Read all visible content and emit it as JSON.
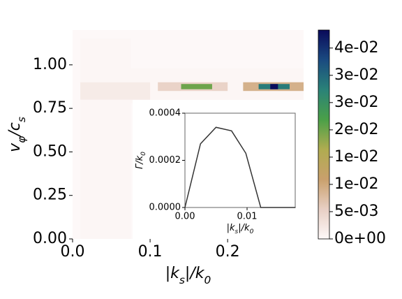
{
  "chart_data": {
    "type": "heatmap",
    "x_label": "|k_s|/k_0",
    "y_label": "v_φ/c_s",
    "xlim": [
      0,
      0.298
    ],
    "ylim": [
      0,
      1.2
    ],
    "xticks": [
      {
        "value": 0,
        "label": "0.0"
      },
      {
        "value": 0.1,
        "label": "0.1"
      },
      {
        "value": 0.2,
        "label": "0.2"
      }
    ],
    "yticks": [
      {
        "value": 0,
        "label": "0.00"
      },
      {
        "value": 0.25,
        "label": "0.25"
      },
      {
        "value": 0.5,
        "label": "0.50"
      },
      {
        "value": 0.75,
        "label": "0.75"
      },
      {
        "value": 1.0,
        "label": "1.00"
      }
    ],
    "cells": [
      {
        "x0": 0.01,
        "x1": 0.075,
        "y0": 0,
        "y1": 1.15,
        "value": 0.0003
      },
      {
        "x0": 0.075,
        "x1": 0.298,
        "y0": 0.78,
        "y1": 0.98,
        "value": 0.0003
      },
      {
        "x0": 0.01,
        "x1": 0.1,
        "y0": 0.8,
        "y1": 0.9,
        "value": 0.0018
      },
      {
        "x0": 0.11,
        "x1": 0.2,
        "y0": 0.85,
        "y1": 0.9,
        "value": 0.005
      },
      {
        "x0": 0.14,
        "x1": 0.18,
        "y0": 0.86,
        "y1": 0.89,
        "value": 0.02
      },
      {
        "x0": 0.22,
        "x1": 0.298,
        "y0": 0.85,
        "y1": 0.9,
        "value": 0.009
      },
      {
        "x0": 0.24,
        "x1": 0.28,
        "y0": 0.86,
        "y1": 0.89,
        "value": 0.028
      },
      {
        "x0": 0.255,
        "x1": 0.265,
        "y0": 0.86,
        "y1": 0.89,
        "value": 0.038
      }
    ],
    "colormap": [
      "#fdf8f8",
      "#e8cfc4",
      "#c9a06c",
      "#b0ac50",
      "#4aa048",
      "#2a8278",
      "#1a4a80",
      "#0a0a5a"
    ],
    "clim": [
      0,
      0.0383
    ],
    "colorbar_ticks": [
      {
        "value": 0,
        "label": "0e+00"
      },
      {
        "value": 0.005,
        "label": "5e-03"
      },
      {
        "value": 0.01,
        "label": "1e-02"
      },
      {
        "value": 0.015,
        "label": "1e-02"
      },
      {
        "value": 0.02,
        "label": "2e-02"
      },
      {
        "value": 0.025,
        "label": "3e-02"
      },
      {
        "value": 0.03,
        "label": "3e-02"
      },
      {
        "value": 0.035,
        "label": "4e-02"
      }
    ],
    "inset": {
      "type": "line",
      "x_label": "|k_s|/k_0",
      "y_label": "Γ/k_0",
      "color": "#333333",
      "x": [
        0,
        0.0025,
        0.005,
        0.0075,
        0.0098,
        0.0122,
        0.0178
      ],
      "values": [
        0,
        0.00027,
        0.00034,
        0.000325,
        0.00023,
        0,
        0
      ],
      "xlim": [
        0,
        0.01775
      ],
      "ylim": [
        0,
        0.0004
      ],
      "xticks": [
        {
          "value": 0,
          "label": "0.00"
        },
        {
          "value": 0.01,
          "label": "0.01"
        }
      ],
      "yticks": [
        {
          "value": 0,
          "label": "0.0000"
        },
        {
          "value": 0.0002,
          "label": "0.0002"
        },
        {
          "value": 0.0004,
          "label": "0.0004"
        }
      ]
    }
  }
}
